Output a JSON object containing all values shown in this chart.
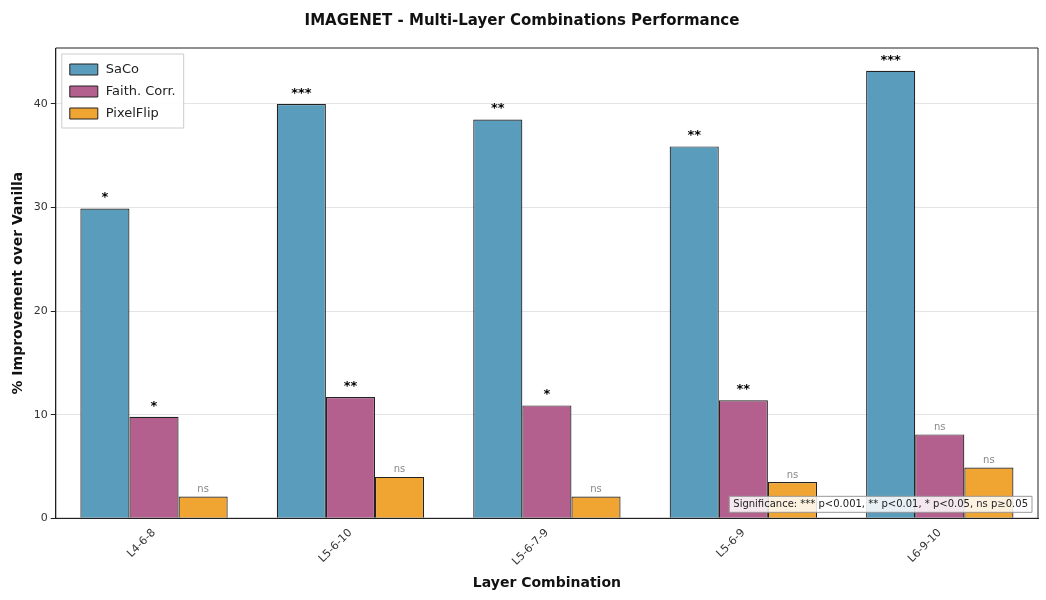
{
  "chart_data": {
    "type": "bar",
    "title": "IMAGENET - Multi-Layer Combinations Performance",
    "xlabel": "Layer Combination",
    "ylabel": "% Improvement over Vanilla",
    "categories": [
      "L4-6-8",
      "L5-6-10",
      "L5-6-7-9",
      "L5-6-9",
      "L6-9-10"
    ],
    "series": [
      {
        "name": "SaCo",
        "color": "#5a9cbc",
        "values": [
          29.9,
          40.0,
          38.5,
          35.9,
          43.2
        ],
        "value_labels": [
          "*",
          "***",
          "**",
          "**",
          "***"
        ]
      },
      {
        "name": "Faith. Corr.",
        "color": "#b3608e",
        "values": [
          9.8,
          11.7,
          10.9,
          11.4,
          8.1
        ],
        "value_labels": [
          "*",
          "**",
          "*",
          "**",
          "ns"
        ]
      },
      {
        "name": "PixelFlip",
        "color": "#f0a431",
        "values": [
          2.1,
          4.0,
          2.1,
          3.5,
          4.9
        ],
        "value_labels": [
          "ns",
          "ns",
          "ns",
          "ns",
          "ns"
        ]
      }
    ],
    "ylim": [
      0,
      45.4
    ],
    "yticks": [
      0,
      10,
      20,
      30,
      40
    ],
    "grid": "y",
    "legend": "top left",
    "annotations": [
      "Significance: *** p<0.001, ** p<0.01, * p<0.05, ns p≥0.05"
    ]
  }
}
